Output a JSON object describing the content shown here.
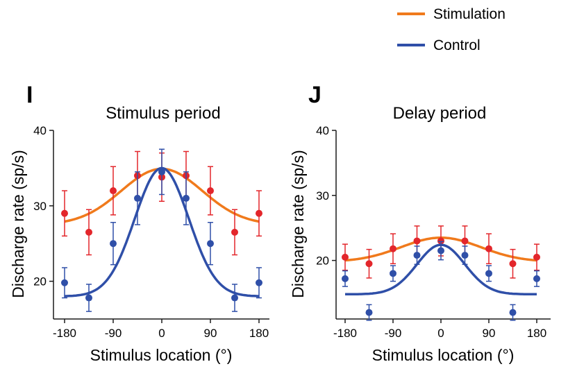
{
  "legend": {
    "items": [
      {
        "label": "Stimulation",
        "color": "#f07a1c"
      },
      {
        "label": "Control",
        "color": "#2f4fa8"
      }
    ]
  },
  "colors": {
    "stim_point": "#e3262b",
    "ctrl_point": "#2f4fa8",
    "stim_line": "#f07a1c",
    "ctrl_line": "#2f4fa8",
    "axis": "#1a1a1a"
  },
  "chart_data": [
    {
      "panel": "I",
      "type": "scatter",
      "title": "Stimulus period",
      "xlabel": "Stimulus location (°)",
      "ylabel": "Discharge rate (sp/s)",
      "xlim": [
        -190,
        190
      ],
      "ylim": [
        15,
        40
      ],
      "xticks": [
        -180,
        -90,
        0,
        90,
        180
      ],
      "yticks": [
        20,
        30,
        40
      ],
      "x": [
        -180,
        -135,
        -90,
        -45,
        0,
        45,
        90,
        135,
        180
      ],
      "series": [
        {
          "name": "Stimulation",
          "values": [
            29.0,
            26.5,
            32.0,
            34.0,
            33.8,
            34.0,
            32.0,
            26.5,
            29.0
          ],
          "err": [
            3.0,
            3.0,
            3.2,
            3.2,
            3.2,
            3.2,
            3.2,
            3.0,
            3.0
          ],
          "fit": {
            "baseline": 27.5,
            "amplitude": 7.4,
            "sigma": 75
          }
        },
        {
          "name": "Control",
          "values": [
            19.8,
            17.8,
            25.0,
            31.0,
            34.5,
            31.0,
            25.0,
            17.8,
            19.8
          ],
          "err": [
            2.0,
            1.8,
            2.8,
            3.5,
            3.0,
            3.5,
            2.8,
            1.8,
            2.0
          ],
          "fit": {
            "baseline": 18.0,
            "amplitude": 17.0,
            "sigma": 50
          }
        }
      ]
    },
    {
      "panel": "J",
      "type": "scatter",
      "title": "Delay period",
      "xlabel": "Stimulus location (°)",
      "ylabel": "Discharge rate (sp/s)",
      "xlim": [
        -190,
        190
      ],
      "ylim": [
        11,
        40
      ],
      "xticks": [
        -180,
        -90,
        0,
        90,
        180
      ],
      "yticks": [
        20,
        30,
        40
      ],
      "x": [
        -180,
        -135,
        -90,
        -45,
        0,
        45,
        90,
        135,
        180
      ],
      "series": [
        {
          "name": "Stimulation",
          "values": [
            20.5,
            19.5,
            21.8,
            23.0,
            23.0,
            23.0,
            21.8,
            19.5,
            20.5
          ],
          "err": [
            2.0,
            2.2,
            2.3,
            2.3,
            2.3,
            2.3,
            2.3,
            2.2,
            2.0
          ],
          "fit": {
            "baseline": 19.8,
            "amplitude": 3.7,
            "sigma": 75
          }
        },
        {
          "name": "Control",
          "values": [
            17.2,
            12.0,
            18.0,
            20.8,
            21.5,
            20.8,
            18.0,
            12.0,
            17.2
          ],
          "err": [
            1.2,
            1.2,
            1.2,
            1.4,
            1.4,
            1.4,
            1.2,
            1.2,
            1.2
          ],
          "fit": {
            "baseline": 14.8,
            "amplitude": 7.6,
            "sigma": 45
          }
        }
      ]
    }
  ]
}
